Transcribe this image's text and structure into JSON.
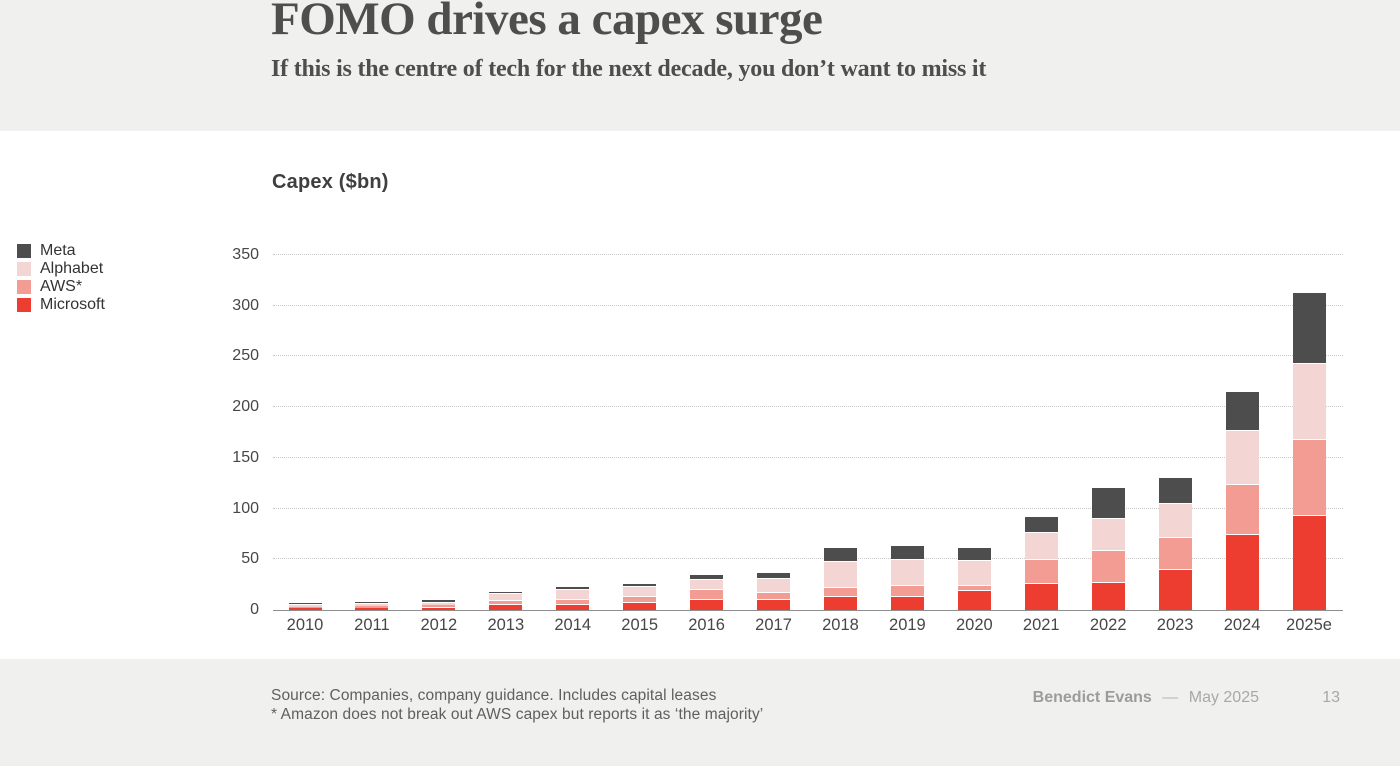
{
  "slide": {
    "title": "FOMO drives a capex surge",
    "subtitle": "If this is the centre of tech for the next decade, you don’t want to miss it",
    "page_number": "13",
    "footer": {
      "source_line1": "Source: Companies, company guidance. Includes capital leases",
      "source_line2": "* Amazon does not break out AWS capex but reports it as ‘the majority’",
      "author": "Benedict Evans",
      "separator": "—",
      "date": "May 2025"
    }
  },
  "chart_data": {
    "type": "bar",
    "stacked": true,
    "title": "Capex ($bn)",
    "xlabel": "",
    "ylabel": "Capex ($bn)",
    "ylim": [
      0,
      350
    ],
    "yticks": [
      0,
      50,
      100,
      150,
      200,
      250,
      300,
      350
    ],
    "grid": "dotted horizontal",
    "legend_position": "left",
    "categories": [
      "2010",
      "2011",
      "2012",
      "2013",
      "2014",
      "2015",
      "2016",
      "2017",
      "2018",
      "2019",
      "2020",
      "2021",
      "2022",
      "2023",
      "2024",
      "2025e"
    ],
    "stack_order_note": "series listed bottom-to-top of the stack",
    "series": [
      {
        "name": "Microsoft",
        "color": "#ed3d31",
        "values": [
          2.0,
          2.3,
          2.5,
          6,
          6,
          8,
          11,
          11,
          13.5,
          14,
          20,
          27,
          28,
          40,
          75,
          94
        ]
      },
      {
        "name": "AWS*",
        "color": "#f29c93",
        "values": [
          0.7,
          1.5,
          2.5,
          4,
          4.5,
          6,
          10,
          7,
          9.5,
          11,
          5,
          23,
          31,
          32,
          49,
          75
        ]
      },
      {
        "name": "Alphabet",
        "color": "#f3d6d3",
        "values": [
          3.5,
          3.5,
          3.3,
          7,
          10.5,
          10,
          10,
          14,
          25,
          25,
          24,
          27,
          32,
          33,
          53,
          75
        ]
      },
      {
        "name": "Meta",
        "color": "#4d4d4d",
        "values": [
          0.3,
          0.6,
          1.2,
          1,
          1.5,
          2,
          4,
          5,
          14,
          14,
          13,
          16,
          30,
          26,
          39,
          70
        ]
      }
    ],
    "legend": [
      {
        "label": "Meta",
        "color": "#4d4d4d"
      },
      {
        "label": "Alphabet",
        "color": "#f3d6d3"
      },
      {
        "label": "AWS*",
        "color": "#f29c93"
      },
      {
        "label": "Microsoft",
        "color": "#ed3d31"
      }
    ]
  }
}
